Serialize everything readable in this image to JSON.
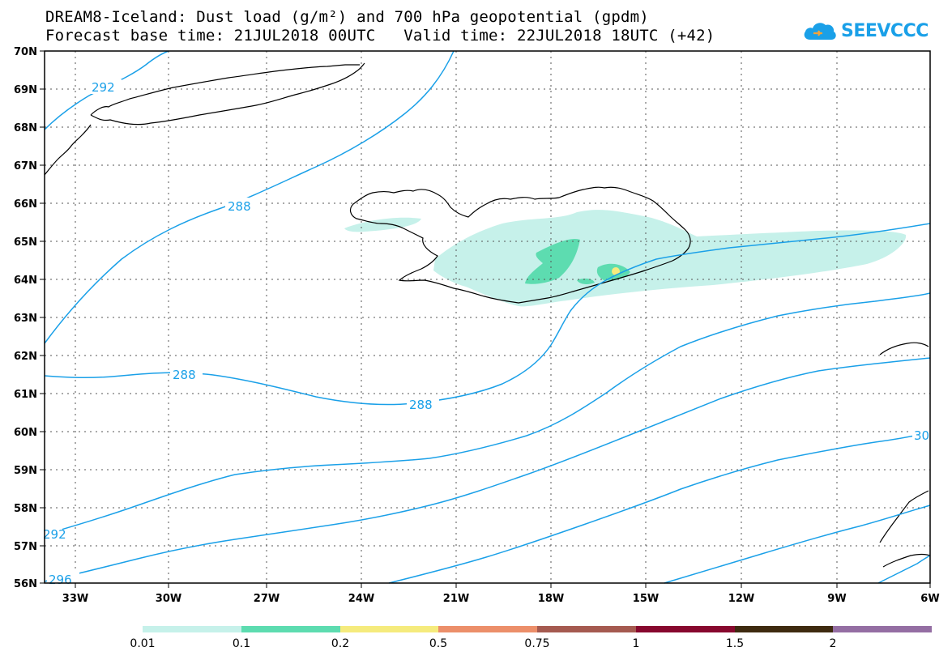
{
  "title": {
    "line1": "DREAM8-Iceland: Dust load (g/m²) and 700 hPa geopotential (gpdm)",
    "base_time": "Forecast base time: 21JUL2018 00UTC",
    "valid_time": "Valid time: 22JUL2018 18UTC (+42)"
  },
  "logo": {
    "text": "SEEVCCC",
    "icon": "cloud-icon"
  },
  "map": {
    "lat_labels": [
      "70N",
      "69N",
      "68N",
      "67N",
      "66N",
      "65N",
      "64N",
      "63N",
      "62N",
      "61N",
      "60N",
      "59N",
      "58N",
      "57N",
      "56N"
    ],
    "lon_labels": [
      "33W",
      "30W",
      "27W",
      "24W",
      "21W",
      "18W",
      "15W",
      "12W",
      "9W",
      "6W"
    ],
    "contour_labels": [
      "292",
      "288",
      "288",
      "288",
      "292",
      "296",
      "30"
    ],
    "contour_color": "#1aa0e8"
  },
  "colorbar": {
    "ticks": [
      "0.01",
      "0.1",
      "0.2",
      "0.5",
      "0.75",
      "1",
      "1.5",
      "2"
    ],
    "colors": [
      "#c6f1ea",
      "#5ddcb0",
      "#f5eb7d",
      "#ec8f6a",
      "#a55a50",
      "#87082e",
      "#3e2a10",
      "#946ea3"
    ]
  }
}
